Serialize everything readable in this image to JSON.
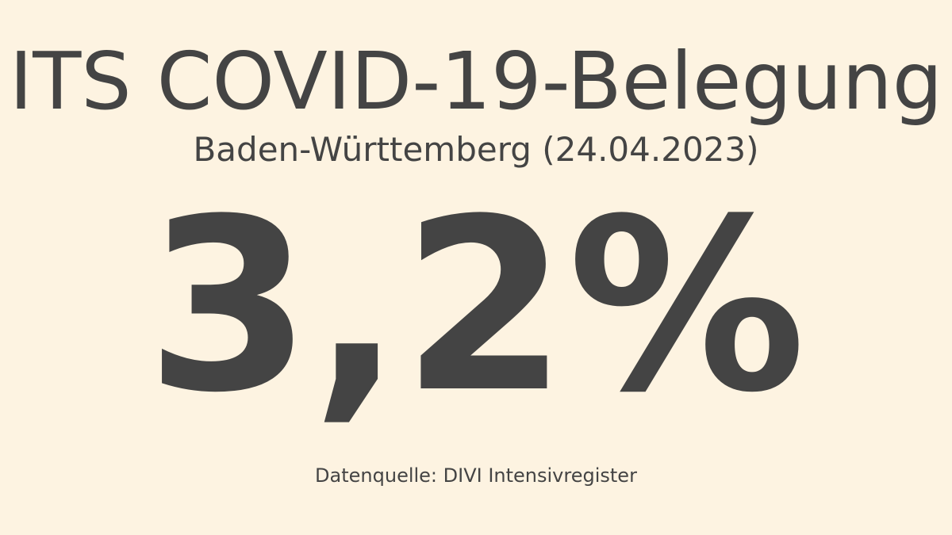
{
  "title": "ITS COVID-19-Belegung",
  "subtitle": "Baden-Württemberg (24.04.2023)",
  "value": "3,2%",
  "source": "Datenquelle: DIVI Intensivregister"
}
